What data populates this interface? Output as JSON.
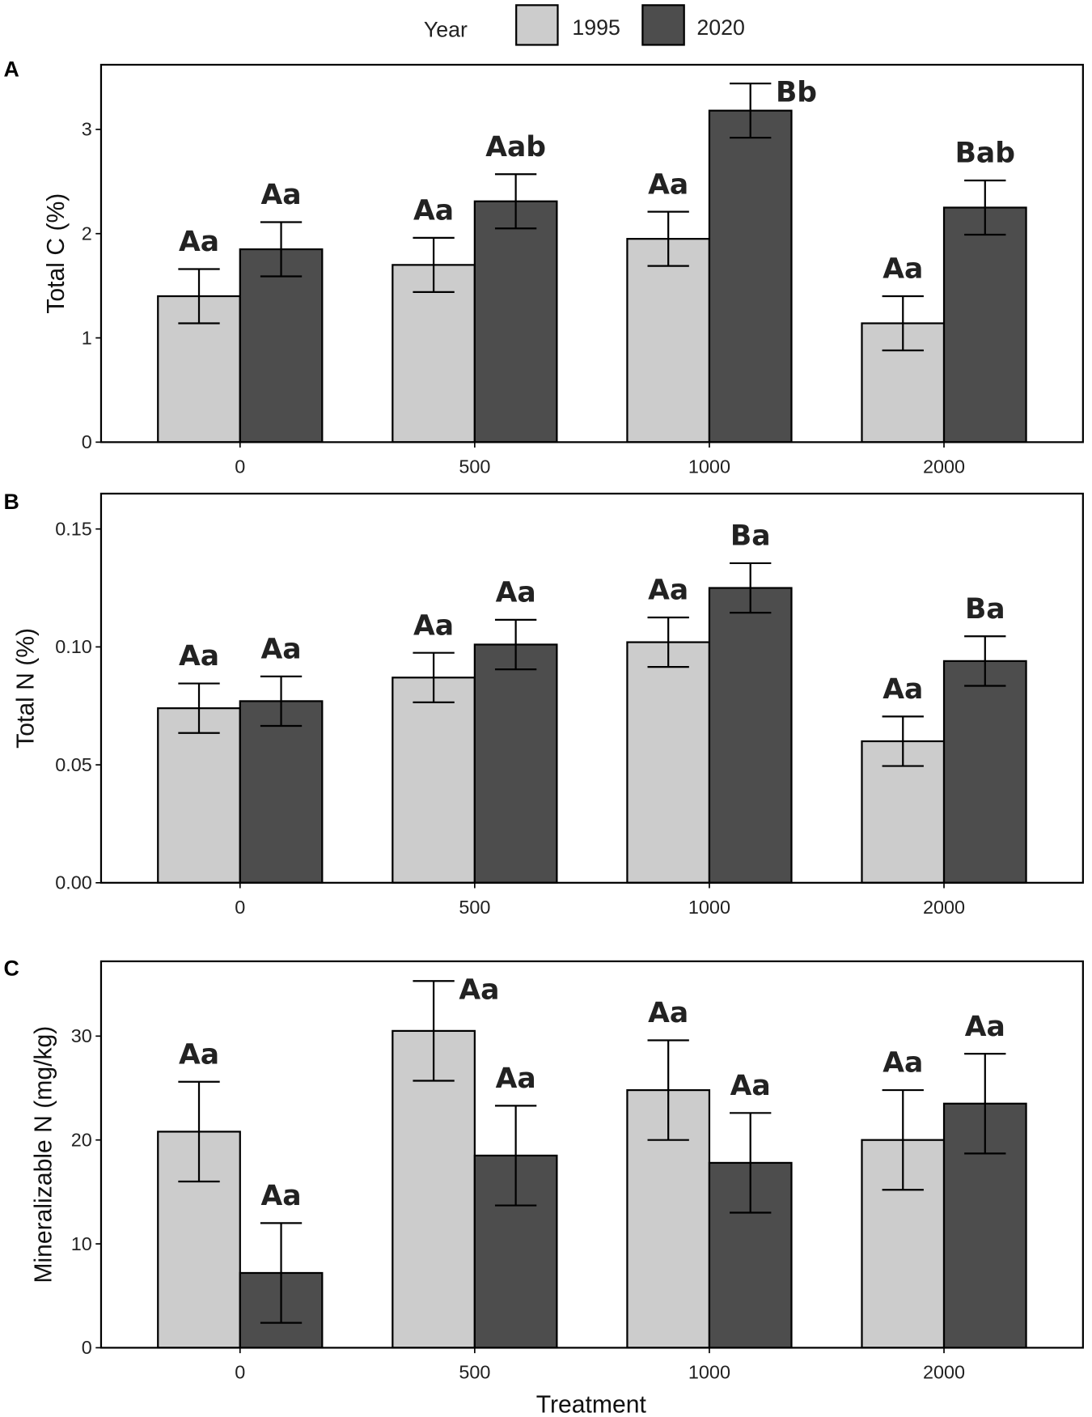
{
  "legend": {
    "title": "Year",
    "entries": [
      {
        "label": "1995",
        "color": "#cccccc"
      },
      {
        "label": "2020",
        "color": "#4d4d4d"
      }
    ]
  },
  "chart_data": [
    {
      "type": "bar",
      "panel": "A",
      "xlabel": "",
      "ylabel": "Total C (%)",
      "categories": [
        "0",
        "500",
        "1000",
        "2000"
      ],
      "ylim": [
        0,
        3.62
      ],
      "yticks": [
        "0",
        "1",
        "2",
        "3"
      ],
      "ytick_values": [
        0,
        1,
        2,
        3
      ],
      "series": [
        {
          "name": "1995",
          "values": [
            1.4,
            1.7,
            1.95,
            1.14
          ],
          "errors": [
            0.26,
            0.26,
            0.26,
            0.26
          ],
          "labels": [
            "Aa",
            "Aa",
            "Aa",
            "Aa"
          ]
        },
        {
          "name": "2020",
          "values": [
            1.85,
            2.31,
            3.18,
            2.25
          ],
          "errors": [
            0.26,
            0.26,
            0.26,
            0.26
          ],
          "labels": [
            "Aa",
            "Aab",
            "Bb",
            "Bab"
          ]
        }
      ]
    },
    {
      "type": "bar",
      "panel": "B",
      "xlabel": "",
      "ylabel": "Total N (%)",
      "categories": [
        "0",
        "500",
        "1000",
        "2000"
      ],
      "ylim": [
        0,
        0.165
      ],
      "yticks": [
        "0.00",
        "0.05",
        "0.10",
        "0.15"
      ],
      "ytick_values": [
        0,
        0.05,
        0.1,
        0.15
      ],
      "series": [
        {
          "name": "1995",
          "values": [
            0.074,
            0.087,
            0.102,
            0.06
          ],
          "errors": [
            0.0105,
            0.0105,
            0.0105,
            0.0105
          ],
          "labels": [
            "Aa",
            "Aa",
            "Aa",
            "Aa"
          ]
        },
        {
          "name": "2020",
          "values": [
            0.077,
            0.101,
            0.125,
            0.094
          ],
          "errors": [
            0.0105,
            0.0105,
            0.0105,
            0.0105
          ],
          "labels": [
            "Aa",
            "Aa",
            "Ba",
            "Ba"
          ]
        }
      ]
    },
    {
      "type": "bar",
      "panel": "C",
      "xlabel": "Treatment",
      "ylabel": "Mineralizable N (mg/kg)",
      "categories": [
        "0",
        "500",
        "1000",
        "2000"
      ],
      "ylim": [
        0,
        37.2
      ],
      "yticks": [
        "0",
        "10",
        "20",
        "30"
      ],
      "ytick_values": [
        0,
        10,
        20,
        30
      ],
      "series": [
        {
          "name": "1995",
          "values": [
            20.8,
            30.5,
            24.8,
            20.0
          ],
          "errors": [
            4.8,
            4.8,
            4.8,
            4.8
          ],
          "labels": [
            "Aa",
            "Aa",
            "Aa",
            "Aa"
          ]
        },
        {
          "name": "2020",
          "values": [
            7.2,
            18.5,
            17.8,
            23.5
          ],
          "errors": [
            4.8,
            4.8,
            4.8,
            4.8
          ],
          "labels": [
            "Aa",
            "Aa",
            "Aa",
            "Aa"
          ]
        }
      ]
    }
  ]
}
